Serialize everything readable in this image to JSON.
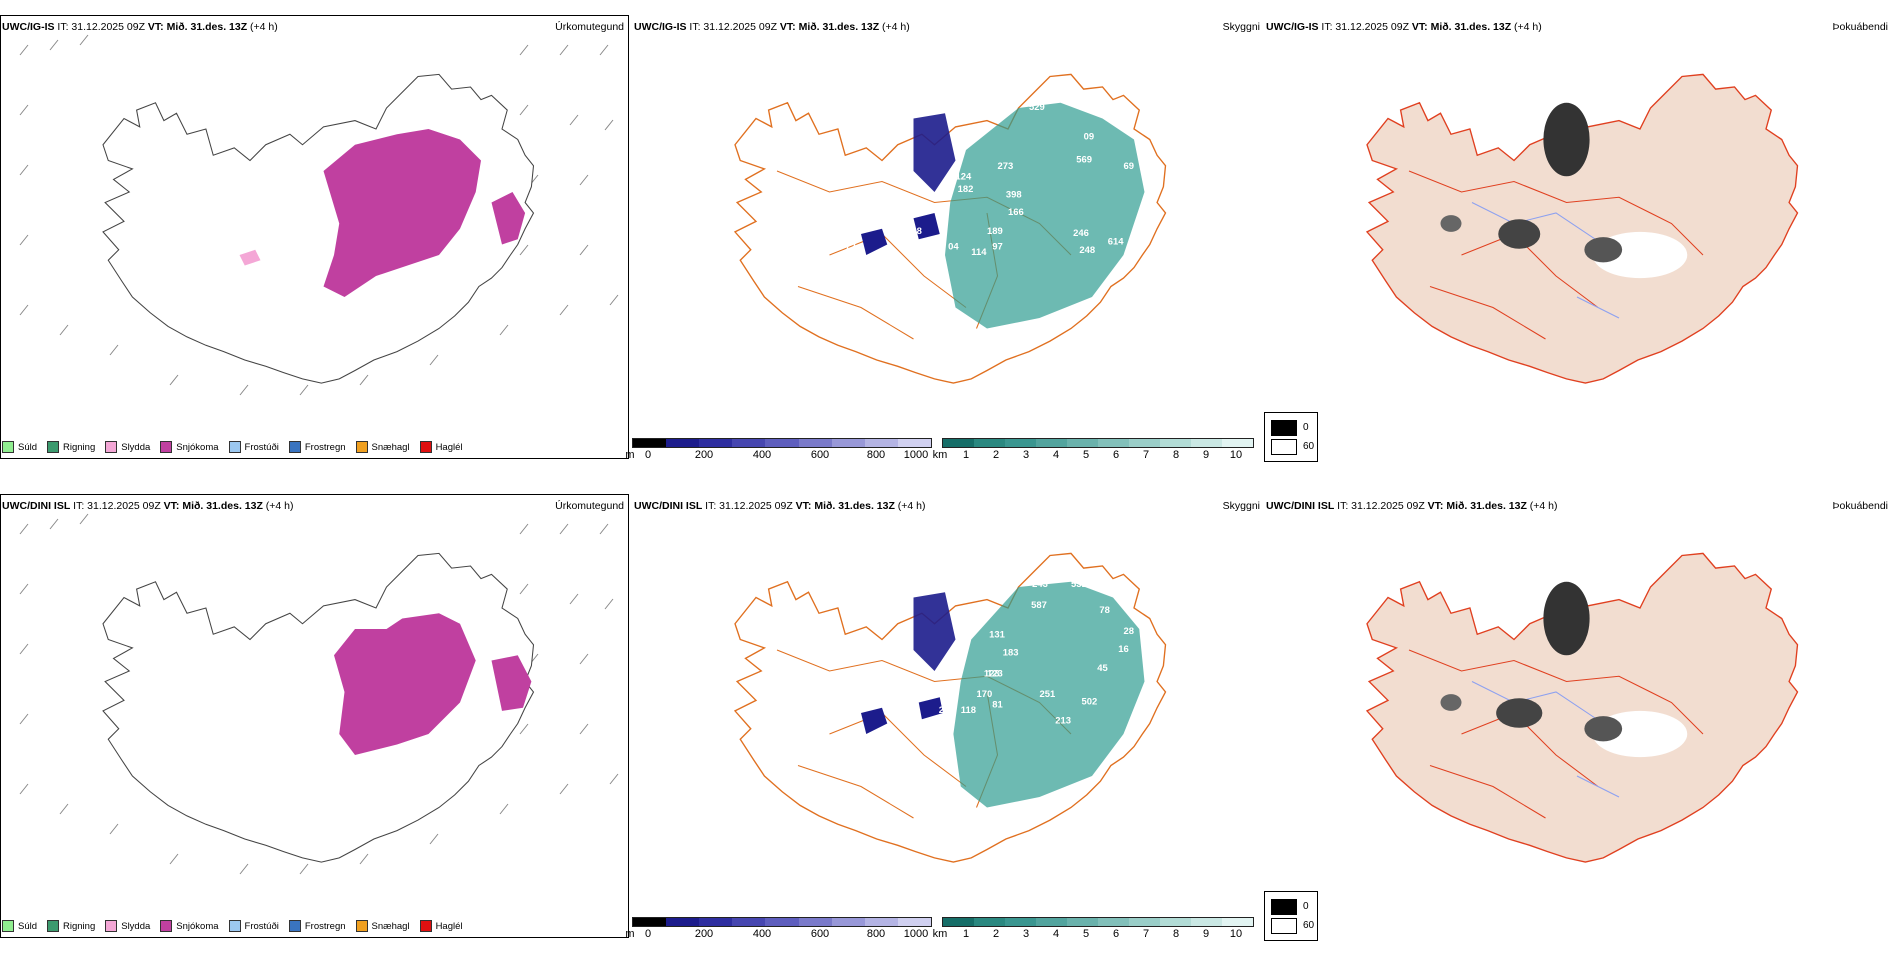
{
  "colors": {
    "precip": [
      "#90ee90",
      "#3c9a6e",
      "#f4a7d6",
      "#c040a0",
      "#9cc8f0",
      "#3a74c0",
      "#f0a020",
      "#e01010"
    ],
    "snow_dark": "#1c1c8c",
    "cloud_teal": "#2f9c92",
    "roads": "#e07020",
    "land_tan": "#f2ddd0"
  },
  "panels": [
    {
      "model": "UWC/IG-IS",
      "init": "IT: 31.12.2025 09Z",
      "valid": "VT: Mið. 31.des. 13Z",
      "lead": "(+4 h)",
      "titles": {
        "precip": "Úrkomutegund",
        "cloud": "Skyggni",
        "fog": "Þokuábendi"
      },
      "cloud_labels": [
        "529",
        "09",
        "273",
        "569",
        "69",
        "124",
        "182",
        "398",
        "166",
        "94",
        "68",
        "189",
        "246",
        "72",
        "04",
        "114",
        "97",
        "248",
        "614"
      ]
    },
    {
      "model": "UWC/DINI ISL",
      "init": "IT: 31.12.2025 09Z",
      "valid": "VT: Mið. 31.des. 13Z",
      "lead": "(+4 h)",
      "titles": {
        "precip": "Úrkomutegund",
        "cloud": "Skyggni",
        "fog": "Þokuábendi"
      },
      "cloud_labels": [
        "243",
        "531",
        "587",
        "78",
        "35",
        "131",
        "28",
        "22",
        "183",
        "16",
        "123",
        "45",
        "123",
        "69",
        "170",
        "251",
        "68",
        "24",
        "118",
        "81",
        "502",
        "213"
      ]
    }
  ],
  "precip_legend": [
    "Súld",
    "Rigning",
    "Slydda",
    "Snjókoma",
    "Frostúði",
    "Frostregn",
    "Snæhagl",
    "Haglél"
  ],
  "snow_depth_bar": {
    "unit": "m",
    "ticks": [
      "0",
      "200",
      "400",
      "600",
      "800",
      "1000"
    ]
  },
  "visibility_bar": {
    "unit": "km",
    "ticks": [
      "1",
      "2",
      "3",
      "4",
      "5",
      "6",
      "7",
      "8",
      "9",
      "10"
    ]
  },
  "fog_legend": {
    "high": "0",
    "low": "60"
  }
}
